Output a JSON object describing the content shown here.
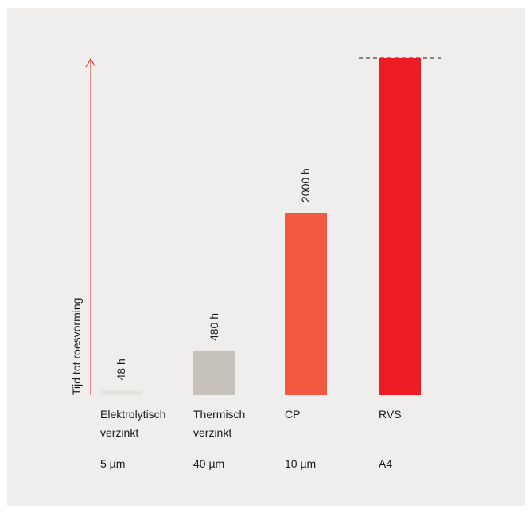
{
  "chart_data": {
    "type": "bar",
    "ylabel": "Tijd tot roesvorming",
    "categories": [
      {
        "line1": "Elektrolytisch",
        "line2": "verzinkt",
        "spec": "5 µm"
      },
      {
        "line1": "Thermisch",
        "line2": "verzinkt",
        "spec": "40 µm"
      },
      {
        "line1": "CP",
        "line2": "",
        "spec": "10 µm"
      },
      {
        "line1": "RVS",
        "line2": "",
        "spec": "A4"
      }
    ],
    "values": [
      48,
      480,
      2000,
      null
    ],
    "value_labels": [
      "48 h",
      "480 h",
      "2000 h",
      ""
    ],
    "bar_colors": [
      "#e6e4e1",
      "#c6c1bb",
      "#f15a40",
      "#ec1c24"
    ],
    "axis_color": "#d9232d",
    "last_bar_exceeds_scale": true,
    "grid": false,
    "legend": "none"
  }
}
